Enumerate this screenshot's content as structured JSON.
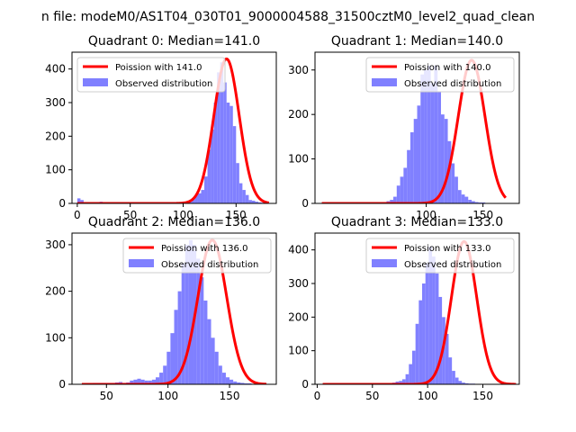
{
  "figure": {
    "suptitle": "n file: modeM0/AS1T04_030T01_9000004588_31500cztM0_level2_quad_clean"
  },
  "colors": {
    "fit": "#ff0000",
    "hist": "#8080ff",
    "axis": "#000000"
  },
  "chart_data": [
    {
      "type": "bar",
      "title": "Quadrant 0: Median=141.0",
      "xlim": [
        -5,
        188
      ],
      "ylim": [
        0,
        450
      ],
      "xticks": [
        0,
        50,
        100,
        150
      ],
      "yticks": [
        0,
        100,
        200,
        300,
        400
      ],
      "legend": [
        "Poission with 141.0",
        "Observed distribution"
      ],
      "legend_position": "top",
      "mean": 141,
      "fit_peak": 430,
      "fit_sigma": 12,
      "hist": {
        "bin_width": 3,
        "bin_start": 0,
        "values": [
          15,
          10,
          3,
          3,
          3,
          4,
          3,
          5,
          4,
          3,
          3,
          4,
          3,
          3,
          4,
          3,
          3,
          3,
          4,
          3,
          3,
          3,
          3,
          4,
          3,
          3,
          3,
          3,
          3,
          3,
          3,
          3,
          3,
          3,
          5,
          8,
          12,
          25,
          30,
          40,
          80,
          160,
          220,
          300,
          390,
          420,
          360,
          300,
          290,
          230,
          120,
          60,
          40,
          25,
          10,
          8,
          5,
          3,
          2,
          2,
          1
        ],
        "x_range": [
          0,
          181
        ]
      }
    },
    {
      "type": "bar",
      "title": "Quadrant 1: Median=140.0",
      "xlim": [
        2,
        182
      ],
      "ylim": [
        0,
        340
      ],
      "xticks": [
        100,
        150
      ],
      "yticks": [
        0,
        100,
        200,
        300
      ],
      "legend": [
        "Poission with 140.0",
        "Observed distribution"
      ],
      "legend_position": "top-right",
      "mean": 140,
      "fit_peak": 322,
      "fit_sigma": 11.8,
      "hist": {
        "bin_width": 3,
        "bin_start": 8,
        "values": [
          2,
          2,
          2,
          2,
          2,
          2,
          3,
          3,
          3,
          3,
          3,
          3,
          3,
          3,
          3,
          3,
          3,
          3,
          3,
          5,
          8,
          15,
          40,
          60,
          80,
          120,
          160,
          190,
          220,
          290,
          300,
          310,
          270,
          310,
          250,
          200,
          190,
          140,
          90,
          60,
          30,
          20,
          15,
          8,
          5,
          3,
          2,
          2
        ],
        "x_range": [
          8,
          170
        ]
      }
    },
    {
      "type": "bar",
      "title": "Quadrant 2: Median=136.0",
      "xlim": [
        22,
        188
      ],
      "ylim": [
        0,
        325
      ],
      "xticks": [
        50,
        100,
        150
      ],
      "yticks": [
        0,
        100,
        200,
        300
      ],
      "legend": [
        "Poission with 136.0",
        "Observed distribution"
      ],
      "legend_position": "top-right",
      "mean": 136,
      "fit_peak": 310,
      "fit_sigma": 11.7,
      "hist": {
        "bin_width": 3,
        "bin_start": 30,
        "values": [
          2,
          2,
          2,
          3,
          3,
          3,
          3,
          3,
          3,
          4,
          5,
          3,
          4,
          8,
          10,
          12,
          10,
          8,
          8,
          10,
          15,
          25,
          40,
          70,
          110,
          160,
          200,
          260,
          300,
          310,
          300,
          270,
          230,
          180,
          140,
          100,
          70,
          40,
          25,
          15,
          10,
          6,
          4,
          3,
          2,
          2
        ],
        "x_range": [
          30,
          180
        ]
      }
    },
    {
      "type": "bar",
      "title": "Quadrant 3: Median=133.0",
      "xlim": [
        -2,
        183
      ],
      "ylim": [
        0,
        450
      ],
      "xticks": [
        0,
        50,
        100,
        150
      ],
      "yticks": [
        0,
        100,
        200,
        300,
        400
      ],
      "legend": [
        "Poission with 133.0",
        "Observed distribution"
      ],
      "legend_position": "top-right",
      "mean": 133,
      "fit_peak": 425,
      "fit_sigma": 11.5,
      "hist": {
        "bin_width": 3,
        "bin_start": 5,
        "values": [
          3,
          3,
          3,
          3,
          3,
          3,
          3,
          3,
          3,
          3,
          3,
          3,
          3,
          3,
          3,
          3,
          3,
          3,
          3,
          3,
          3,
          5,
          8,
          10,
          15,
          30,
          60,
          100,
          180,
          250,
          300,
          360,
          410,
          380,
          330,
          260,
          200,
          150,
          80,
          40,
          20,
          10,
          5,
          3,
          2,
          2,
          1
        ],
        "x_range": [
          5,
          180
        ]
      }
    }
  ]
}
